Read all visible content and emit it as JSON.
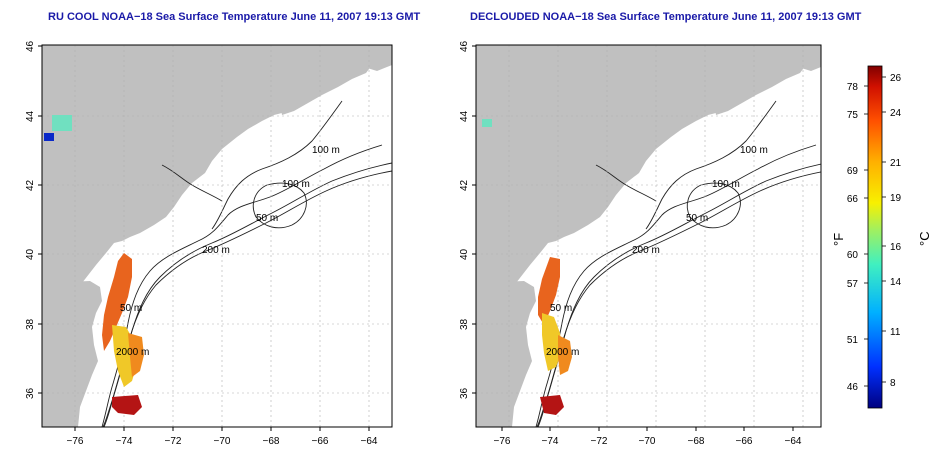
{
  "maps": [
    {
      "title": "RU COOL NOAA−18 Sea Surface Temperature June 11, 2007 19:13 GMT",
      "lon_ticks": [
        "−76",
        "−74",
        "−72",
        "−70",
        "−68",
        "−66",
        "−64"
      ],
      "lat_ticks": [
        "36",
        "38",
        "40",
        "42",
        "44",
        "46"
      ],
      "contour_labels": [
        "100 m",
        "100 m",
        "50 m",
        "200 m",
        "50 m",
        "2000 m"
      ]
    },
    {
      "title": "DECLOUDED NOAA−18 Sea Surface Temperature June 11, 2007 19:13 GMT",
      "lon_ticks": [
        "−76",
        "−74",
        "−72",
        "−70",
        "−68",
        "−66",
        "−64"
      ],
      "lat_ticks": [
        "36",
        "38",
        "40",
        "42",
        "44",
        "46"
      ],
      "contour_labels": [
        "100 m",
        "100 m",
        "50 m",
        "200 m",
        "50 m",
        "2000 m"
      ]
    }
  ],
  "colorbar": {
    "fahrenheit_label": "°F",
    "celsius_label": "°C",
    "fahrenheit_ticks": [
      "78",
      "75",
      "69",
      "66",
      "60",
      "57",
      "51",
      "46"
    ],
    "celsius_ticks": [
      "26",
      "24",
      "21",
      "19",
      "16",
      "14",
      "11",
      "8"
    ]
  },
  "colors": {
    "land": "#c0c0c0",
    "ocean": "#ffffff",
    "title": "#1a1aa8",
    "contour": "#222222",
    "grid": "#b0b0b0",
    "sst_warm": "#e8641e",
    "sst_hot": "#b41414",
    "sst_mid": "#f0c828",
    "sst_cool": "#70e0c0",
    "sst_cold": "#0a28c8"
  }
}
